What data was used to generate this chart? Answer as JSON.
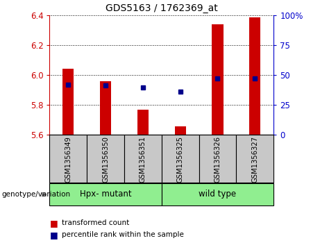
{
  "title": "GDS5163 / 1762369_at",
  "samples": [
    "GSM1356349",
    "GSM1356350",
    "GSM1356351",
    "GSM1356325",
    "GSM1356326",
    "GSM1356327"
  ],
  "red_values": [
    6.04,
    5.96,
    5.77,
    5.655,
    6.34,
    6.385
  ],
  "blue_values": [
    5.937,
    5.93,
    5.918,
    5.888,
    5.978,
    5.978
  ],
  "ymin": 5.6,
  "ymax": 6.4,
  "yticks_left": [
    5.6,
    5.8,
    6.0,
    6.2,
    6.4
  ],
  "yticks_right": [
    0,
    25,
    50,
    75,
    100
  ],
  "groups": [
    {
      "label": "Hpx- mutant",
      "start": 0,
      "end": 3,
      "color": "#90EE90"
    },
    {
      "label": "wild type",
      "start": 3,
      "end": 6,
      "color": "#90EE90"
    }
  ],
  "group_label": "genotype/variation",
  "legend_items": [
    {
      "label": "transformed count",
      "color": "#CC0000"
    },
    {
      "label": "percentile rank within the sample",
      "color": "#00008B"
    }
  ],
  "bar_color": "#CC0000",
  "dot_color": "#00008B",
  "bg_color": "#C8C8C8",
  "plot_bg": "#FFFFFF",
  "left_axis_color": "#CC0000",
  "right_axis_color": "#0000CC"
}
